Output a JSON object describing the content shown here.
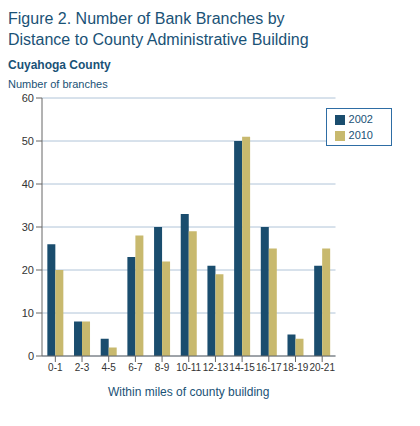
{
  "chart_data": {
    "type": "bar",
    "title": "Figure 2. Number of Bank Branches by\nDistance to County Administrative Building",
    "subtitle": "Cuyahoga County",
    "ylabel": "Number of branches",
    "xlabel": "Within miles of county building",
    "categories": [
      "0-1",
      "2-3",
      "4-5",
      "6-7",
      "8-9",
      "10-11",
      "12-13",
      "14-15",
      "16-17",
      "18-19",
      "20-21"
    ],
    "series": [
      {
        "name": "2002",
        "color": "#1a4d6e",
        "values": [
          26,
          8,
          4,
          23,
          30,
          33,
          21,
          50,
          30,
          5,
          21
        ]
      },
      {
        "name": "2010",
        "color": "#c8b96e",
        "values": [
          20,
          8,
          2,
          28,
          22,
          29,
          19,
          51,
          25,
          4,
          25
        ]
      }
    ],
    "ylim": [
      0,
      60
    ],
    "yticks": [
      0,
      10,
      20,
      30,
      40,
      50,
      60
    ],
    "grid": true,
    "legend": "upper right"
  }
}
